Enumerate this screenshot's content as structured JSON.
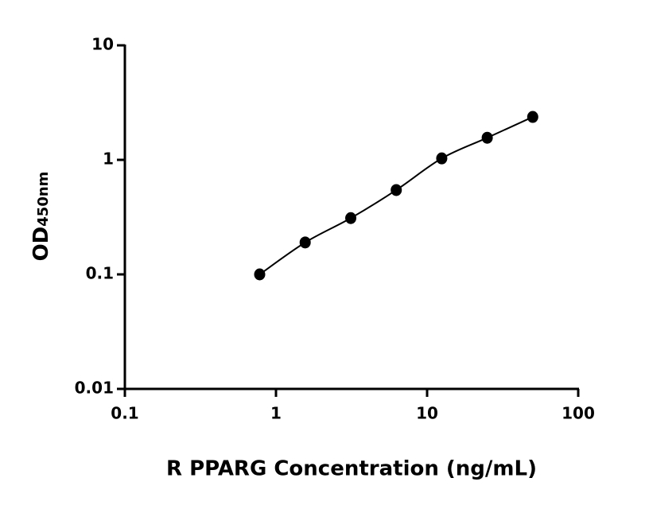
{
  "chart_data": {
    "type": "scatter",
    "x_label": "R PPARG Concentration (ng/mL)",
    "y_label": "OD",
    "y_label_sub": "450nm",
    "xscale": "log",
    "yscale": "log",
    "xlim": [
      0.1,
      100
    ],
    "xticks": [
      0.1,
      1,
      10,
      100
    ],
    "ylim": [
      0.01,
      10
    ],
    "yticks": [
      0.01,
      0.1,
      1,
      10
    ],
    "grid": false,
    "series": [
      {
        "x": [
          0.78,
          1.56,
          3.125,
          6.25,
          12.5,
          25,
          50
        ],
        "values": [
          0.1,
          0.19,
          0.31,
          0.545,
          1.03,
          1.56,
          2.37
        ],
        "color": "#000000",
        "curve": true
      }
    ]
  }
}
